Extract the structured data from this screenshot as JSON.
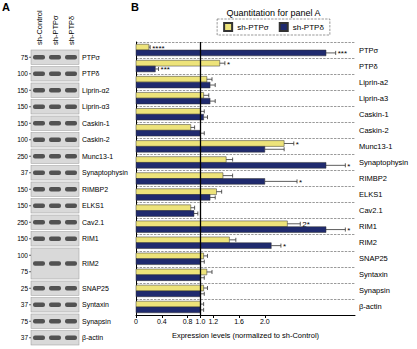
{
  "panel_a": {
    "label": "A",
    "lanes": [
      "sh-Control",
      "sh-PTPσ",
      "sh-PTPδ"
    ],
    "rows": [
      {
        "label": "PTPσ",
        "markers": [
          75
        ]
      },
      {
        "label": "PTPδ",
        "markers": [
          100
        ]
      },
      {
        "label": "Liprin-α2",
        "markers": [
          150
        ]
      },
      {
        "label": "Liprin-α3",
        "markers": [
          150
        ]
      },
      {
        "label": "Caskin-1",
        "markers": [
          150
        ]
      },
      {
        "label": "Caskin-2",
        "markers": [
          100
        ]
      },
      {
        "label": "Munc13-1",
        "markers": [
          250
        ]
      },
      {
        "label": "Synaptophysin",
        "markers": [
          37
        ]
      },
      {
        "label": "RIMBP2",
        "markers": [
          150
        ]
      },
      {
        "label": "ELKS1",
        "markers": [
          150
        ]
      },
      {
        "label": "Cav2.1",
        "markers": [
          250
        ]
      },
      {
        "label": "RIM1",
        "markers": [
          150
        ]
      },
      {
        "label": "RIM2",
        "markers": [
          100,
          75
        ]
      },
      {
        "label": "SNAP25",
        "markers": [
          25
        ]
      },
      {
        "label": "Syntaxin",
        "markers": [
          37
        ]
      },
      {
        "label": "Synapsin",
        "markers": [
          75
        ]
      },
      {
        "label": "β-actin",
        "markers": [
          37
        ]
      }
    ]
  },
  "chart_data": {
    "type": "bar",
    "orientation": "horizontal",
    "panel_label": "B",
    "title": "Quantitation for panel A",
    "x_label": "Expression levels (normalized to sh-Control)",
    "categories": [
      "PTPσ",
      "PTPδ",
      "Liprin-a2",
      "Liprin-a3",
      "Caskin-1",
      "Caskin-2",
      "Munc13-1",
      "Synaptophysin",
      "RIMBP2",
      "ELKS1",
      "Cav2.1",
      "RIM1",
      "RIM2",
      "SNAP25",
      "Syntaxin",
      "Synapsin",
      "β-actin"
    ],
    "series": [
      {
        "name": "sh-PTPσ",
        "color": "#ede37a",
        "values": [
          0.2,
          1.3,
          1.1,
          1.05,
          1.0,
          0.85,
          2.3,
          1.4,
          1.35,
          1.25,
          0.85,
          2.35,
          1.45,
          1.05,
          1.1,
          1.05,
          1.0
        ],
        "errors": [
          0.02,
          0.08,
          0.08,
          0.08,
          0.06,
          0.06,
          0.15,
          0.1,
          0.15,
          0.08,
          0.06,
          0.2,
          0.1,
          0.06,
          0.08,
          0.06,
          0.05
        ],
        "significance": [
          "****",
          "*",
          null,
          null,
          null,
          null,
          "*",
          null,
          null,
          null,
          null,
          "2*",
          null,
          null,
          null,
          null,
          null
        ]
      },
      {
        "name": "sh-PTPδ",
        "color": "#1f2a6e",
        "values": [
          2.95,
          0.3,
          1.15,
          1.15,
          1.05,
          1.0,
          2.0,
          2.95,
          2.0,
          1.15,
          0.9,
          2.95,
          2.1,
          1.0,
          1.0,
          1.0,
          1.0
        ],
        "errors": [
          0.15,
          0.05,
          0.08,
          0.08,
          0.06,
          0.06,
          0.3,
          0.3,
          0.5,
          0.08,
          0.06,
          0.3,
          0.15,
          0.06,
          0.06,
          0.06,
          0.05
        ],
        "significance": [
          "***",
          "***",
          null,
          null,
          null,
          null,
          null,
          "*",
          "*",
          null,
          null,
          "*",
          "*",
          null,
          null,
          null,
          null
        ]
      }
    ],
    "reference_line": 1,
    "xlim": [
      0,
      3.4
    ],
    "xticks": [
      0,
      0.4,
      0.8,
      {
        "value": 1,
        "label": "1.0"
      },
      1.2,
      1.6,
      {
        "value": 2,
        "label": "2.0"
      }
    ],
    "grid": true,
    "legend": "top"
  }
}
